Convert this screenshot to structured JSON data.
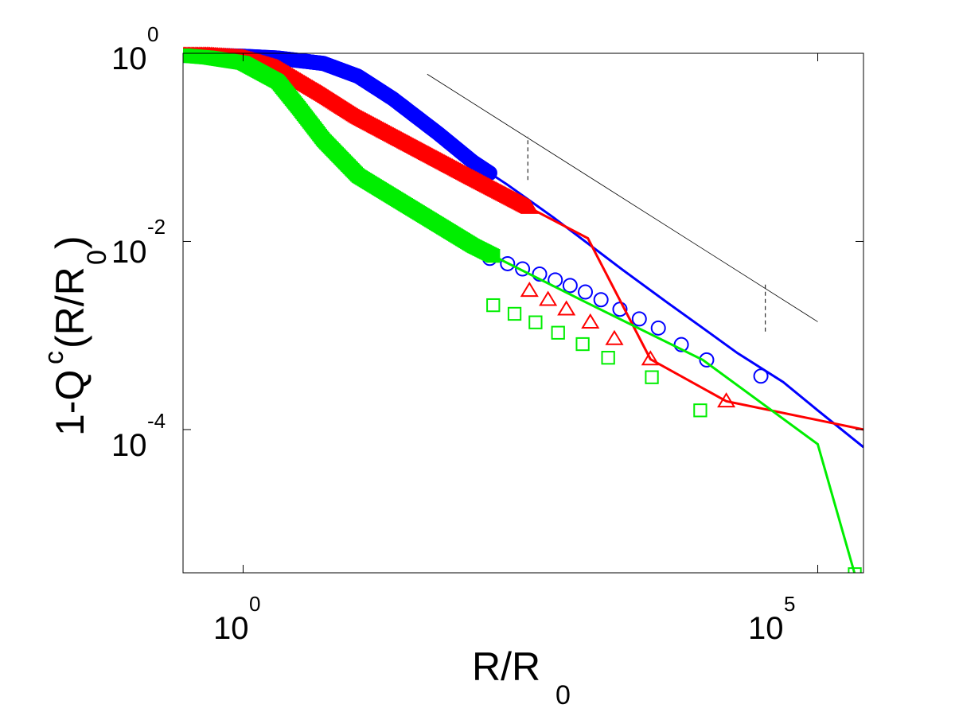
{
  "chart_data": {
    "type": "line",
    "scale": {
      "x": "log",
      "y": "log"
    },
    "xlabel": {
      "main": "R/R",
      "subscript": "0"
    },
    "ylabel": {
      "prefix": "1-Q",
      "superscript": "c",
      "middle": "(R/R",
      "subscript": "0",
      "suffix": ")"
    },
    "xlim": [
      0.3,
      250000
    ],
    "ylim": [
      3e-06,
      1
    ],
    "grid": false,
    "x_ticks": [
      {
        "value": 1,
        "base": "10",
        "exponent": "0"
      },
      {
        "value": 100000,
        "base": "10",
        "exponent": "5"
      }
    ],
    "y_ticks": [
      {
        "value": 1,
        "base": "10",
        "exponent": "0"
      },
      {
        "value": 0.01,
        "base": "10",
        "exponent": "-2"
      },
      {
        "value": 0.0001,
        "base": "10",
        "exponent": "-4"
      }
    ],
    "series": [
      {
        "color": "#0000ff",
        "marker": "circle",
        "x": [
          0.3,
          0.5,
          1,
          2,
          5,
          10,
          20,
          50,
          100,
          200,
          500,
          1000,
          2000,
          5000,
          10000,
          20000,
          50000,
          100000,
          250000
        ],
        "y": [
          0.95,
          0.95,
          0.93,
          0.89,
          0.78,
          0.57,
          0.33,
          0.14,
          0.07,
          0.04,
          0.018,
          0.0095,
          0.005,
          0.0022,
          0.0012,
          0.00065,
          0.00032,
          0.00016,
          6.5e-05
        ],
        "markers_x": [
          32000,
          10800,
          6500,
          4100,
          2800,
          1900,
          1300,
          950,
          700,
          520,
          380,
          270,
          200,
          140
        ],
        "markers_y": [
          0.00037,
          0.00055,
          0.0008,
          0.0012,
          0.0015,
          0.0019,
          0.0024,
          0.0029,
          0.0034,
          0.0039,
          0.0045,
          0.0051,
          0.0058,
          0.0066
        ]
      },
      {
        "color": "#ff0000",
        "marker": "triangle",
        "x": [
          0.3,
          0.5,
          1,
          2,
          5,
          10,
          100,
          1000,
          10000,
          100000,
          250000
        ],
        "y": [
          0.95,
          0.95,
          0.9,
          0.7,
          0.36,
          0.21,
          0.047,
          0.0108,
          0.0024,
          0.00025,
          0.0001
        ],
        "markers_x": [
          16000,
          3500,
          1700,
          1050,
          650,
          450,
          310
        ],
        "markers_y": [
          0.0002,
          0.00056,
          0.00092,
          0.00138,
          0.0019,
          0.0024,
          0.003
        ],
        "line_points": [
          [
            0.3,
            0.95
          ],
          [
            0.5,
            0.95
          ],
          [
            1,
            0.9
          ],
          [
            2,
            0.7
          ],
          [
            5,
            0.36
          ],
          [
            10,
            0.21
          ],
          [
            100,
            0.047
          ],
          [
            1000,
            0.0108
          ],
          [
            3500,
            0.00056
          ],
          [
            16000,
            0.0002
          ],
          [
            250000,
            0.0001
          ]
        ]
      },
      {
        "color": "#00ee00",
        "marker": "square",
        "x": [
          0.3,
          0.5,
          1,
          2,
          3,
          5,
          10,
          100,
          1000,
          10000,
          100000,
          250000
        ],
        "y": [
          0.95,
          0.9,
          0.79,
          0.5,
          0.27,
          0.12,
          0.05,
          0.009,
          0.0022,
          0.00055,
          7e-05,
          2.9e-06
        ],
        "line_points": [
          [
            0.3,
            0.95
          ],
          [
            0.5,
            0.9
          ],
          [
            1,
            0.79
          ],
          [
            2,
            0.5
          ],
          [
            3,
            0.27
          ],
          [
            5,
            0.12
          ],
          [
            10,
            0.05
          ],
          [
            100,
            0.009
          ],
          [
            1000,
            0.0022
          ],
          [
            10000,
            0.00055
          ],
          [
            100000,
            7e-05
          ],
          [
            210000,
            2.9e-06
          ]
        ],
        "markers_x": [
          210000,
          9500,
          3600,
          1500,
          900,
          550,
          350,
          230,
          150
        ],
        "markers_y": [
          2.9e-06,
          0.00016,
          0.00036,
          0.00058,
          0.00081,
          0.00107,
          0.00138,
          0.0017,
          0.0021
        ]
      }
    ],
    "reference_line": {
      "color": "#000000",
      "from": [
        40,
        0.6
      ],
      "to": [
        100000,
        0.0014
      ]
    },
    "dashed_markers": [
      {
        "x": 300,
        "y_from": 0.045,
        "y_to": 0.13
      },
      {
        "x": 35000,
        "y_from": 0.0011,
        "y_to": 0.0035
      }
    ]
  }
}
